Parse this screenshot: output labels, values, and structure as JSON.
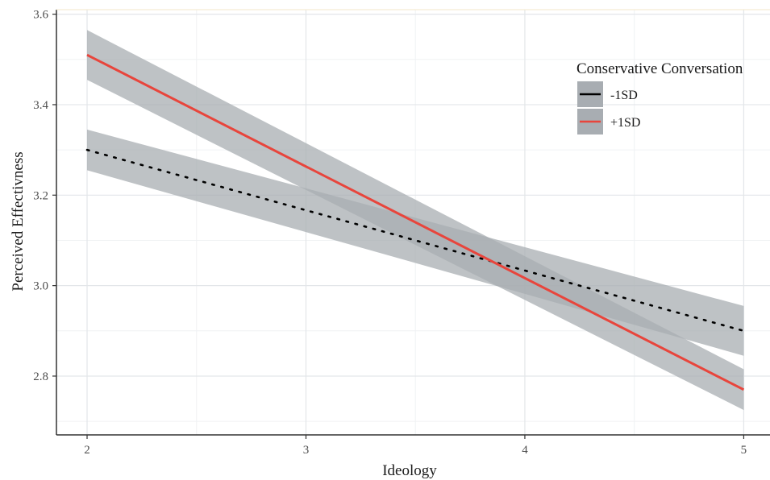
{
  "chart_data": {
    "type": "line",
    "xlabel": "Ideology",
    "ylabel": "Perceived Effectivness",
    "xlim": [
      1.86,
      5.12
    ],
    "ylim": [
      2.67,
      3.61
    ],
    "xticks": [
      2,
      3,
      4,
      5
    ],
    "xtick_labels": [
      "2",
      "3",
      "4",
      "5"
    ],
    "yticks": [
      2.8,
      3.0,
      3.2,
      3.4,
      3.6
    ],
    "ytick_labels": [
      "2.8",
      "3.0",
      "3.2",
      "3.4",
      "3.6"
    ],
    "grid": true,
    "legend": {
      "title": "Conservative Conversation",
      "placement": "top-right"
    },
    "series": [
      {
        "name": "-1SD",
        "style": "dotted",
        "color": "#000000",
        "x": [
          2,
          5
        ],
        "y": [
          3.3,
          2.9
        ],
        "ci_lower": [
          3.255,
          2.845
        ],
        "ci_upper": [
          3.345,
          2.955
        ]
      },
      {
        "name": "+1SD",
        "style": "solid",
        "color": "#e8453c",
        "x": [
          2,
          5
        ],
        "y": [
          3.51,
          2.77
        ],
        "ci_lower": [
          3.455,
          2.725
        ],
        "ci_upper": [
          3.565,
          2.815
        ]
      }
    ],
    "ribbon_color": "#a8adb2"
  }
}
